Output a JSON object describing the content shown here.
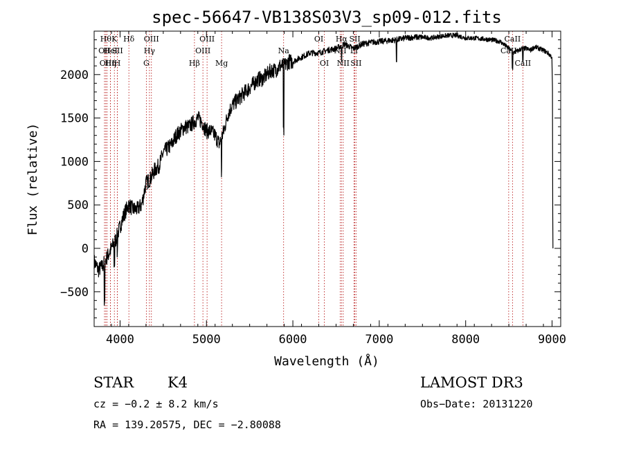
{
  "chart_data": {
    "type": "line",
    "title": "spec-56647-VB138S03V3_sp09-012.fits",
    "xlabel": "Wavelength (Å)",
    "ylabel": "Flux (relative)",
    "xlim": [
      3700,
      9100
    ],
    "ylim": [
      -900,
      2500
    ],
    "x_ticks": [
      4000,
      5000,
      6000,
      7000,
      8000,
      9000
    ],
    "x_tick_labels": [
      "4000",
      "5000",
      "6000",
      "7000",
      "8000",
      "9000"
    ],
    "y_ticks": [
      -500,
      0,
      500,
      1000,
      1500,
      2000
    ],
    "y_tick_labels": [
      "−500",
      "0",
      "500",
      "1000",
      "1500",
      "2000"
    ],
    "series": [
      {
        "x": [
          3700,
          3750,
          3800,
          3850,
          3900,
          3950,
          4000,
          4050,
          4100,
          4150,
          4200,
          4250,
          4300,
          4350,
          4400,
          4450,
          4500,
          4550,
          4600,
          4650,
          4700,
          4750,
          4800,
          4850,
          4900,
          4950,
          5000,
          5050,
          5100,
          5150,
          5200,
          5250,
          5300,
          5350,
          5400,
          5450,
          5500,
          5550,
          5600,
          5650,
          5700,
          5750,
          5800,
          5850,
          5900,
          5950,
          6000,
          6100,
          6200,
          6300,
          6400,
          6500,
          6600,
          6700,
          6800,
          6900,
          7000,
          7100,
          7200,
          7300,
          7400,
          7500,
          7600,
          7700,
          7800,
          7900,
          8000,
          8100,
          8200,
          8300,
          8400,
          8500,
          8550,
          8600,
          8650,
          8700,
          8750,
          8800,
          8850,
          8900,
          8950,
          9000
        ],
        "y": [
          -150,
          -250,
          -200,
          -100,
          0,
          100,
          250,
          400,
          500,
          450,
          450,
          500,
          750,
          800,
          900,
          950,
          1100,
          1150,
          1200,
          1300,
          1350,
          1400,
          1400,
          1450,
          1500,
          1450,
          1350,
          1350,
          1300,
          1200,
          1350,
          1550,
          1650,
          1700,
          1750,
          1800,
          1850,
          1900,
          1950,
          1950,
          2000,
          2050,
          2050,
          2100,
          2100,
          2150,
          2150,
          2200,
          2250,
          2250,
          2280,
          2300,
          2350,
          2300,
          2350,
          2370,
          2380,
          2390,
          2400,
          2420,
          2430,
          2430,
          2420,
          2440,
          2450,
          2450,
          2420,
          2420,
          2410,
          2400,
          2380,
          2300,
          2250,
          2270,
          2300,
          2300,
          2280,
          2320,
          2300,
          2280,
          2250,
          2200
        ]
      }
    ],
    "line_markers": [
      {
        "wl": 3820,
        "label": "OII",
        "row": 1
      },
      {
        "wl": 3835,
        "label": "Hθ",
        "row": 0
      },
      {
        "wl": 3850,
        "label": "OIII",
        "row": 2
      },
      {
        "wl": 3889,
        "label": "Hη",
        "row": 2
      },
      {
        "wl": 3889,
        "label": "HeI",
        "row": 1
      },
      {
        "wl": 3934,
        "label": "K",
        "row": 0
      },
      {
        "wl": 3969,
        "label": "SII",
        "row": 1
      },
      {
        "wl": 3969,
        "label": "H",
        "row": 2
      },
      {
        "wl": 4102,
        "label": "Hδ",
        "row": 0
      },
      {
        "wl": 4304,
        "label": "G",
        "row": 2
      },
      {
        "wl": 4340,
        "label": "Hγ",
        "row": 1
      },
      {
        "wl": 4363,
        "label": "OIII",
        "row": 0
      },
      {
        "wl": 4861,
        "label": "Hβ",
        "row": 2
      },
      {
        "wl": 4959,
        "label": "OIII",
        "row": 1
      },
      {
        "wl": 5007,
        "label": "OIII",
        "row": 0
      },
      {
        "wl": 5175,
        "label": "Mg",
        "row": 2
      },
      {
        "wl": 5893,
        "label": "Na",
        "row": 1
      },
      {
        "wl": 6300,
        "label": "OI",
        "row": 0
      },
      {
        "wl": 6364,
        "label": "OI",
        "row": 2
      },
      {
        "wl": 6548,
        "label": "NII",
        "row": 1
      },
      {
        "wl": 6563,
        "label": "Hα",
        "row": 0
      },
      {
        "wl": 6583,
        "label": "NII",
        "row": 2
      },
      {
        "wl": 6707,
        "label": "Li",
        "row": 1
      },
      {
        "wl": 6717,
        "label": "SII",
        "row": 0
      },
      {
        "wl": 6731,
        "label": "SII",
        "row": 2
      },
      {
        "wl": 8498,
        "label": "CaII",
        "row": 1
      },
      {
        "wl": 8542,
        "label": "CaII",
        "row": 0
      },
      {
        "wl": 8662,
        "label": "CaII",
        "row": 2
      }
    ]
  },
  "info": {
    "class": "STAR",
    "subclass": "K4",
    "survey": "LAMOST DR3",
    "cz": "cz = −0.2 ± 8.2 km/s",
    "obs_date": "Obs−Date: 20131220",
    "radec": "RA = 139.20575, DEC =  −2.80088"
  }
}
